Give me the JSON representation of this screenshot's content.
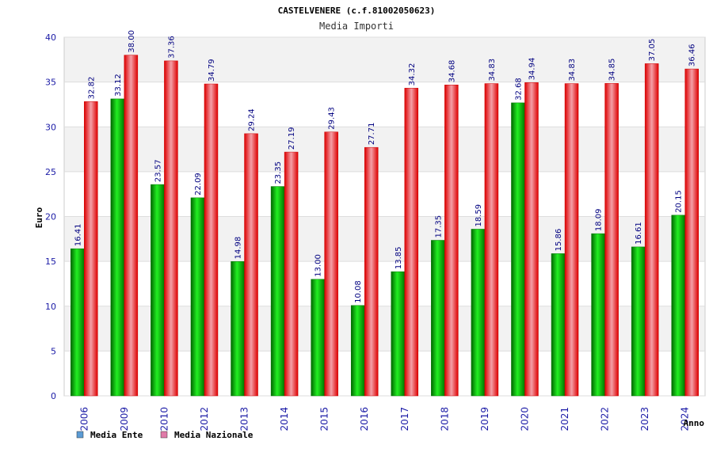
{
  "chart_data": {
    "type": "bar",
    "title": "CASTELVENERE (c.f.81002050623)",
    "subtitle": "Media Importi",
    "ylabel": "Euro",
    "xlabel": "Anno",
    "ylim": [
      0,
      40
    ],
    "yticks": [
      "0",
      "5",
      "10",
      "15",
      "20",
      "25",
      "30",
      "35",
      "40"
    ],
    "categories": [
      "2006",
      "2009",
      "2010",
      "2012",
      "2013",
      "2014",
      "2015",
      "2016",
      "2017",
      "2018",
      "2019",
      "2020",
      "2021",
      "2022",
      "2023",
      "2024"
    ],
    "series": [
      {
        "name": "Media Ente",
        "color": "#00cc00",
        "legend_color": "#5b9bd5",
        "values": [
          16.41,
          33.12,
          23.57,
          22.09,
          14.98,
          23.35,
          13.0,
          10.08,
          13.85,
          17.35,
          18.59,
          32.68,
          15.86,
          18.09,
          16.61,
          20.15
        ],
        "labels": [
          "16.41",
          "33.12",
          "23.57",
          "22.09",
          "14.98",
          "23.35",
          "13.00",
          "10.08",
          "13.85",
          "17.35",
          "18.59",
          "32.68",
          "15.86",
          "18.09",
          "16.61",
          "20.15"
        ]
      },
      {
        "name": "Media Nazionale",
        "color": "#ee1111",
        "legend_color": "#e07aa8",
        "values": [
          32.82,
          38.0,
          37.36,
          34.79,
          29.24,
          27.19,
          29.43,
          27.71,
          34.32,
          34.68,
          34.83,
          34.94,
          34.83,
          34.85,
          37.05,
          36.46
        ],
        "labels": [
          "32.82",
          "38.00",
          "37.36",
          "34.79",
          "29.24",
          "27.19",
          "29.43",
          "27.71",
          "34.32",
          "34.68",
          "34.83",
          "34.94",
          "34.83",
          "34.85",
          "37.05",
          "36.46"
        ]
      }
    ],
    "grid": true,
    "legend_position": "bottom-left"
  }
}
